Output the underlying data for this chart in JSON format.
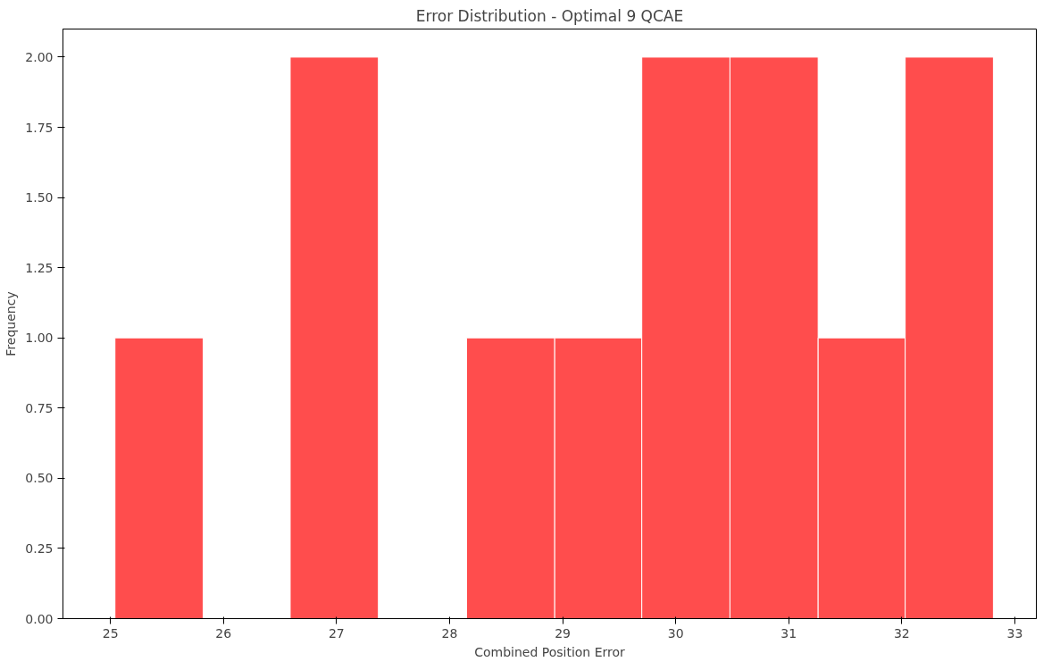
{
  "chart_data": {
    "type": "histogram",
    "title": "Error Distribution - Optimal 9 QCAE",
    "xlabel": "Combined Position Error",
    "ylabel": "Frequency",
    "bins": [
      25.04,
      25.82,
      26.59,
      27.37,
      28.15,
      28.93,
      29.7,
      30.48,
      31.26,
      32.03,
      32.81
    ],
    "values": [
      1,
      0,
      2,
      0,
      1,
      1,
      2,
      2,
      1,
      2
    ],
    "color": "#ff4d4d",
    "xlim": [
      24.58,
      33.19
    ],
    "xticks": [
      25,
      26,
      27,
      28,
      29,
      30,
      31,
      32,
      33
    ],
    "ylim": [
      0,
      2.1
    ],
    "yticks": [
      {
        "value": 0,
        "label": "0.00"
      },
      {
        "value": 0.25,
        "label": "0.25"
      },
      {
        "value": 0.5,
        "label": "0.50"
      },
      {
        "value": 0.75,
        "label": "0.75"
      },
      {
        "value": 1,
        "label": "1.00"
      },
      {
        "value": 1.25,
        "label": "1.25"
      },
      {
        "value": 1.5,
        "label": "1.50"
      },
      {
        "value": 1.75,
        "label": "1.75"
      },
      {
        "value": 2,
        "label": "2.00"
      }
    ],
    "grid": false
  }
}
